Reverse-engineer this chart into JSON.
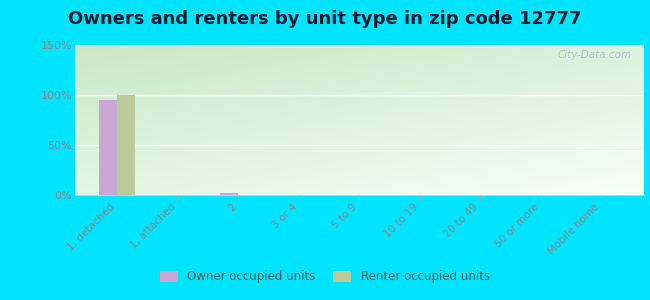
{
  "title": "Owners and renters by unit type in zip code 12777",
  "categories": [
    "1, detached",
    "1, attached",
    "2",
    "3 or 4",
    "5 to 9",
    "10 to 19",
    "20 to 49",
    "50 or more",
    "Mobile home"
  ],
  "owner_values": [
    95,
    0,
    2,
    0,
    0,
    0,
    0,
    0,
    0
  ],
  "renter_values": [
    100,
    0,
    0,
    0,
    0,
    0,
    0,
    0,
    0
  ],
  "owner_color": "#c9a8d4",
  "renter_color": "#bec99a",
  "outer_bg": "#00e5ff",
  "plot_bg_top_left": "#cce8cc",
  "plot_bg_bottom_right": "#f5fff5",
  "ylim": [
    0,
    150
  ],
  "yticks": [
    0,
    50,
    100,
    150
  ],
  "ytick_labels": [
    "0%",
    "50%",
    "100%",
    "150%"
  ],
  "title_fontsize": 13,
  "title_color": "#1a1a2e",
  "watermark": "City-Data.com",
  "bar_width": 0.3,
  "tick_label_color": "#888888",
  "grid_color": "#e0e8e0"
}
